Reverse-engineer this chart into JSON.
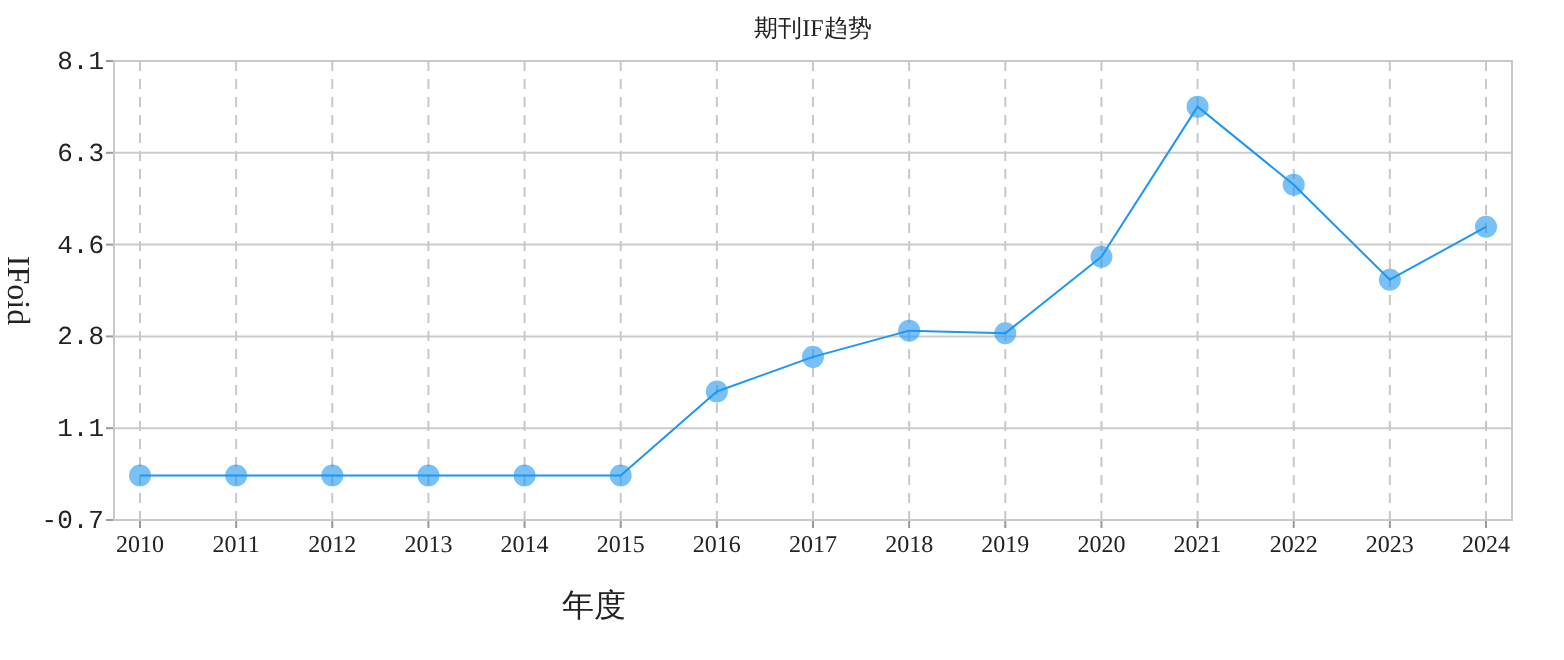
{
  "chart_data": {
    "type": "line",
    "title": "期刊IF趋势",
    "xlabel": "年度",
    "ylabel": "IFoid",
    "categories": [
      "2010",
      "2011",
      "2012",
      "2013",
      "2014",
      "2015",
      "2016",
      "2017",
      "2018",
      "2019",
      "2020",
      "2021",
      "2022",
      "2023",
      "2024"
    ],
    "series": [
      {
        "color": "#1e96f0",
        "values": [
          0.2,
          0.2,
          0.2,
          0.2,
          0.2,
          0.2,
          1.8,
          2.46,
          2.96,
          2.91,
          4.37,
          7.23,
          5.74,
          3.93,
          4.94
        ]
      }
    ],
    "ylim": [
      -0.65,
      8.1
    ],
    "yticks": [
      8.1,
      {
        "value": 6.35,
        "label": "6.3"
      },
      4.6,
      {
        "value": 2.85,
        "label": "2.8"
      },
      1.1,
      {
        "value": -0.65,
        "label": "-0.7"
      }
    ],
    "grid": true,
    "marker": "circle",
    "line_style": "solid"
  }
}
